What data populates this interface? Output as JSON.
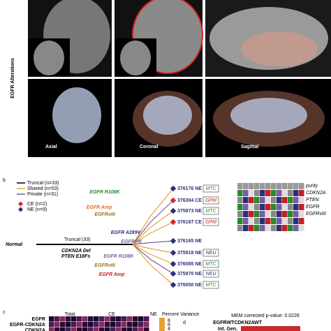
{
  "panel_a": {
    "side_label": "EGFR Alterations",
    "views": [
      "Axial",
      "Coronal",
      "Sagittal"
    ]
  },
  "panel_b": {
    "label": "b",
    "legend_lines": [
      {
        "label": "Truncal (n=33)",
        "color": "#000000"
      },
      {
        "label": "Shared (n=53)",
        "color": "#e8a33a"
      },
      {
        "label": "Private (n=31)",
        "color": "#7b5aa6"
      }
    ],
    "legend_markers": [
      {
        "label": "CE (n=2)",
        "color": "#d62728"
      },
      {
        "label": "NE (n=9)",
        "color": "#2a2f7a"
      }
    ],
    "root": "Normal",
    "trunk": "Truncal (33)",
    "trunk_mutations": [
      "CDKN2A Del",
      "PTEN E18Fs"
    ],
    "branches": [
      "EGFR R108K",
      "EGFR Amp",
      "EGFRvIII",
      "EGFR A289V",
      "EGFRvIII",
      "EGFR R108K",
      "EGFRvIII",
      "EGFR Amp"
    ],
    "samples": [
      {
        "id": "376176 NE",
        "subtype": "MTC"
      },
      {
        "id": "376304 CE",
        "subtype": "GPM"
      },
      {
        "id": "375973 NE",
        "subtype": "MTC"
      },
      {
        "id": "376167 CE",
        "subtype": "GPM"
      },
      {
        "id": "376165 NE"
      },
      {
        "id": "375918 NE",
        "subtype": "NEU"
      },
      {
        "id": "376085 NE",
        "subtype": "MTC"
      },
      {
        "id": "375970 NE",
        "subtype": "NEU"
      },
      {
        "id": "376050 NE",
        "subtype": "MTC"
      }
    ],
    "heatmap_rows": [
      "purity",
      "CDKN2A",
      "PTEN",
      "EGFR",
      "EGFRvIII"
    ]
  },
  "panel_c": {
    "label": "c",
    "columns": [
      "Total",
      "CE",
      "NE"
    ],
    "rows": [
      "EGFR",
      "EGFR-CDKN2A",
      "CDKN2A"
    ],
    "colorbar_title": "Percent Variance",
    "colorbar_ticks": [
      4,
      6,
      8
    ]
  },
  "panel_d": {
    "label": "d",
    "note": "MEM corrected p-value: 0.0226",
    "header": "EGFRWTCDKN2AWT",
    "rows": [
      "Int. Gen."
    ]
  }
}
